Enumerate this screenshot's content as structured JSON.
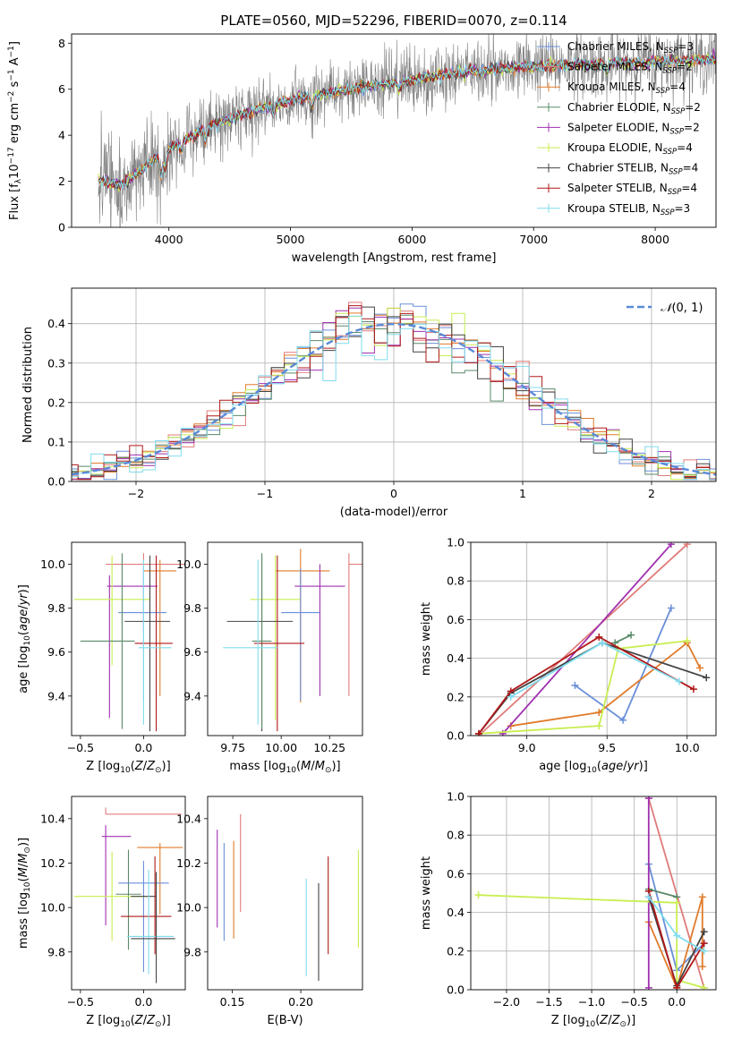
{
  "figure": {
    "title": "PLATE=0560, MJD=52296, FIBERID=0070, z=0.114"
  },
  "colors": {
    "Chabrier MILES": "#6a8fd8",
    "Salpeter MILES": "#e07b7b",
    "Kroupa MILES": "#e07b2a",
    "Chabrier ELODIE": "#5a8a6a",
    "Salpeter ELODIE": "#a030b0",
    "Kroupa ELODIE": "#c8ee50",
    "Chabrier STELIB": "#444444",
    "Salpeter STELIB": "#b01818",
    "Kroupa STELIB": "#80dcee",
    "data": "#808080",
    "gaussian": "#5a8ad8",
    "pink": "#e070b0"
  },
  "legend_entries": [
    "Chabrier MILES, N_SSP=3",
    "Salpeter MILES, N_SSP=2",
    "Kroupa MILES, N_SSP=4",
    "Chabrier ELODIE, N_SSP=2",
    "Salpeter ELODIE, N_SSP=2",
    "Kroupa ELODIE, N_SSP=4",
    "Chabrier STELIB, N_SSP=4",
    "Salpeter STELIB, N_SSP=4",
    "Kroupa STELIB, N_SSP=3"
  ],
  "chart_data": [
    {
      "id": "spectrum",
      "type": "line",
      "title": "PLATE=0560, MJD=52296, FIBERID=0070, z=0.114",
      "xlabel": "wavelength [Angstrom, rest frame]",
      "ylabel": "Flux [f_λ 10^-17 erg cm^-2 s^-1 A^-1]",
      "xlim": [
        3200,
        8500
      ],
      "ylim": [
        0,
        8.4
      ],
      "xticks": [
        4000,
        5000,
        6000,
        7000,
        8000
      ],
      "yticks": [
        0,
        2,
        4,
        6,
        8
      ],
      "continuum": {
        "x": [
          3400,
          3600,
          3800,
          4000,
          4300,
          4600,
          5000,
          5500,
          6000,
          6500,
          7000,
          7500,
          8000,
          8500
        ],
        "y": [
          2.1,
          1.8,
          2.6,
          3.4,
          4.3,
          4.9,
          5.5,
          6.0,
          6.4,
          6.8,
          7.0,
          7.1,
          7.2,
          7.3
        ]
      }
    },
    {
      "id": "residuals",
      "type": "histogram",
      "xlabel": "(data-model)/error",
      "ylabel": "Normed distribution",
      "xlim": [
        -2.5,
        2.5
      ],
      "ylim": [
        0,
        0.49
      ],
      "xticks": [
        -2,
        -1,
        0,
        1,
        2
      ],
      "yticks": [
        0.0,
        0.1,
        0.2,
        0.3,
        0.4
      ],
      "legend": "N(0,1)",
      "grid": true
    },
    {
      "id": "age-vs-Z",
      "type": "scatter",
      "xlabel": "Z [log10(Z/Z⊙)]",
      "ylabel": "age [log10(age/yr)]",
      "xlim": [
        -0.57,
        0.33
      ],
      "ylim": [
        9.22,
        10.1
      ],
      "xticks": [
        -0.5,
        0.0
      ],
      "yticks": [
        9.4,
        9.6,
        9.8,
        10.0
      ],
      "points": [
        {
          "name": "Chabrier MILES",
          "x": 0.0,
          "y": 9.78
        },
        {
          "name": "Salpeter MILES",
          "x": 0.0,
          "y": 10.0
        },
        {
          "name": "Kroupa MILES",
          "x": 0.08,
          "y": 9.97
        },
        {
          "name": "Chabrier ELODIE",
          "x": -0.17,
          "y": 9.65
        },
        {
          "name": "Salpeter ELODIE",
          "x": -0.3,
          "y": 9.9
        },
        {
          "name": "Kroupa ELODIE",
          "x": -0.25,
          "y": 9.84
        },
        {
          "name": "Chabrier STELIB",
          "x": 0.05,
          "y": 9.74
        },
        {
          "name": "Salpeter STELIB",
          "x": 0.1,
          "y": 9.64
        },
        {
          "name": "Kroupa STELIB",
          "x": 0.05,
          "y": 9.62
        }
      ]
    },
    {
      "id": "age-vs-mass",
      "type": "scatter",
      "xlabel": "mass [log10(M/M⊙)]",
      "xlim": [
        9.62,
        10.42
      ],
      "ylim": [
        9.22,
        10.1
      ],
      "xticks": [
        9.75,
        10.0,
        10.25
      ],
      "yticks": [
        9.4,
        9.6,
        9.8,
        10.0
      ]
    },
    {
      "id": "weight-vs-age",
      "type": "line",
      "xlabel": "age [log10(age/yr)]",
      "ylabel": "mass weight",
      "xlim": [
        8.65,
        10.18
      ],
      "ylim": [
        0,
        1.0
      ],
      "xticks": [
        9.0,
        9.5,
        10.0
      ],
      "yticks": [
        0.0,
        0.2,
        0.4,
        0.6,
        0.8,
        1.0
      ],
      "series": [
        {
          "name": "Chabrier MILES",
          "x": [
            9.3,
            9.6,
            9.9
          ],
          "y": [
            0.26,
            0.08,
            0.66
          ]
        },
        {
          "name": "Salpeter MILES",
          "x": [
            8.7,
            10.0
          ],
          "y": [
            0.0,
            0.99
          ]
        },
        {
          "name": "Kroupa MILES",
          "x": [
            8.9,
            9.45,
            10.0,
            10.08
          ],
          "y": [
            0.05,
            0.12,
            0.48,
            0.35
          ]
        },
        {
          "name": "Chabrier ELODIE",
          "x": [
            9.55,
            9.65
          ],
          "y": [
            0.48,
            0.52
          ]
        },
        {
          "name": "Salpeter ELODIE",
          "x": [
            8.85,
            9.9
          ],
          "y": [
            0.01,
            0.99
          ]
        },
        {
          "name": "Kroupa ELODIE",
          "x": [
            8.7,
            9.45,
            9.57,
            10.0
          ],
          "y": [
            0.01,
            0.05,
            0.45,
            0.49
          ]
        },
        {
          "name": "Chabrier STELIB",
          "x": [
            8.7,
            8.9,
            9.47,
            10.12
          ],
          "y": [
            0.01,
            0.22,
            0.48,
            0.3
          ]
        },
        {
          "name": "Salpeter STELIB",
          "x": [
            8.7,
            8.9,
            9.45,
            10.04
          ],
          "y": [
            0.01,
            0.23,
            0.51,
            0.24
          ]
        },
        {
          "name": "Kroupa STELIB",
          "x": [
            8.9,
            9.47,
            9.95
          ],
          "y": [
            0.2,
            0.48,
            0.28
          ]
        }
      ]
    },
    {
      "id": "mass-vs-Z",
      "type": "scatter",
      "xlabel": "Z [log10(Z/Z⊙)]",
      "ylabel": "mass [log10(M/M⊙)]",
      "xlim": [
        -0.57,
        0.33
      ],
      "ylim": [
        9.63,
        10.5
      ],
      "xticks": [
        -0.5,
        0.0
      ],
      "yticks": [
        9.8,
        10.0,
        10.2,
        10.4
      ]
    },
    {
      "id": "mass-vs-ebv",
      "type": "scatter",
      "xlabel": "E(B-V)",
      "xlim": [
        0.132,
        0.245
      ],
      "ylim": [
        9.63,
        10.5
      ],
      "xticks": [
        0.15,
        0.2
      ],
      "yticks": [
        9.8,
        10.0,
        10.2,
        10.4
      ],
      "points": [
        {
          "name": "Salpeter ELODIE",
          "x": 0.139,
          "y": 10.13
        },
        {
          "name": "Chabrier MILES",
          "x": 0.144,
          "y": 10.07
        },
        {
          "name": "Kroupa MILES",
          "x": 0.151,
          "y": 10.08
        },
        {
          "name": "Salpeter MILES",
          "x": 0.156,
          "y": 10.2
        },
        {
          "name": "Kroupa STELIB",
          "x": 0.204,
          "y": 9.91
        },
        {
          "name": "Chabrier STELIB",
          "x": 0.213,
          "y": 9.89
        },
        {
          "name": "Salpeter STELIB",
          "x": 0.22,
          "y": 10.01
        },
        {
          "name": "Kroupa ELODIE",
          "x": 0.242,
          "y": 10.04
        }
      ]
    },
    {
      "id": "weight-vs-Z",
      "type": "line",
      "xlabel": "Z [log10(Z/Z⊙)]",
      "ylabel": "mass weight",
      "xlim": [
        -2.42,
        0.46
      ],
      "ylim": [
        0,
        1.0
      ],
      "xticks": [
        -2.0,
        -1.5,
        -1.0,
        -0.5,
        0.0
      ],
      "yticks": [
        0.0,
        0.2,
        0.4,
        0.6,
        0.8,
        1.0
      ],
      "series": [
        {
          "name": "Chabrier MILES",
          "x": [
            -0.33,
            0.0,
            0.32
          ],
          "y": [
            0.65,
            0.1,
            0.24
          ]
        },
        {
          "name": "Salpeter MILES",
          "x": [
            -0.33,
            0.32
          ],
          "y": [
            0.99,
            0.01
          ]
        },
        {
          "name": "Kroupa MILES",
          "x": [
            -0.33,
            0.0,
            0.3,
            0.3
          ],
          "y": [
            0.35,
            0.01,
            0.48,
            0.12
          ]
        },
        {
          "name": "Chabrier ELODIE",
          "x": [
            -0.33,
            0.0
          ],
          "y": [
            0.52,
            0.48
          ]
        },
        {
          "name": "Salpeter ELODIE",
          "x": [
            -0.33,
            -0.33
          ],
          "y": [
            0.01,
            0.99
          ]
        },
        {
          "name": "Kroupa ELODIE",
          "x": [
            -2.33,
            0.0,
            0.0,
            0.32
          ],
          "y": [
            0.49,
            0.45,
            0.05,
            0.01
          ]
        },
        {
          "name": "Chabrier STELIB",
          "x": [
            -0.33,
            0.0,
            0.32
          ],
          "y": [
            0.48,
            0.02,
            0.3
          ]
        },
        {
          "name": "Salpeter STELIB",
          "x": [
            -0.33,
            0.0,
            0.32
          ],
          "y": [
            0.51,
            0.01,
            0.24
          ]
        },
        {
          "name": "Kroupa STELIB",
          "x": [
            -0.33,
            0.0,
            0.32
          ],
          "y": [
            0.48,
            0.28,
            0.2
          ]
        }
      ]
    }
  ]
}
